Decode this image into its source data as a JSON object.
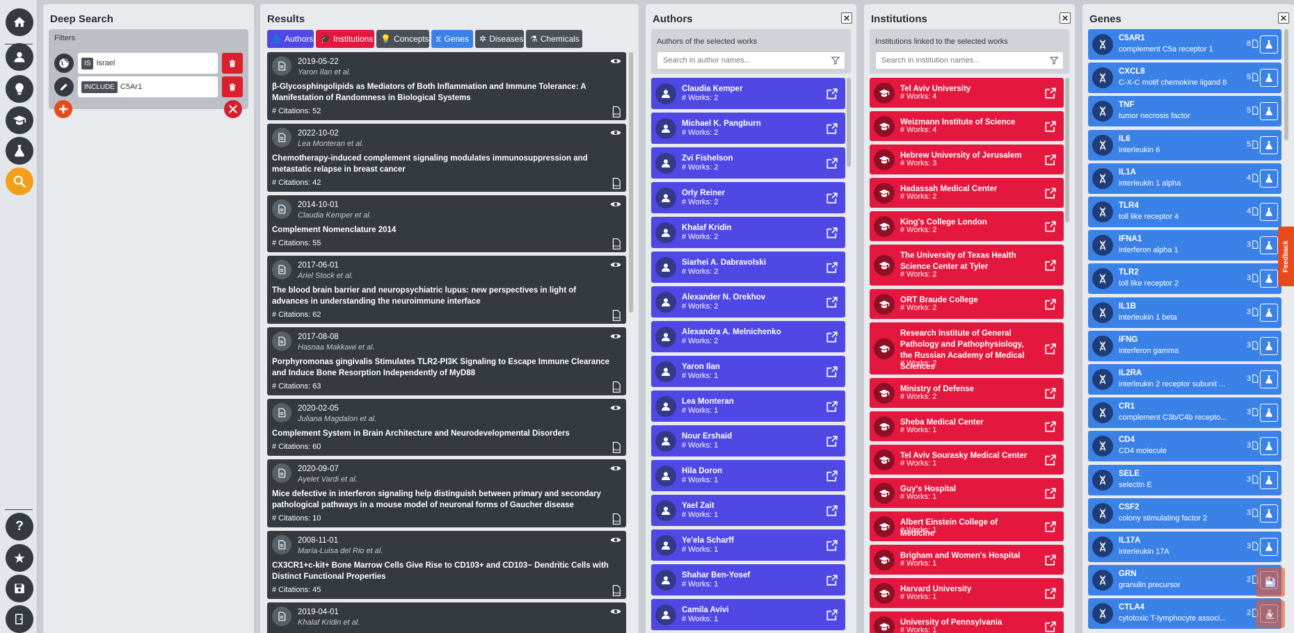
{
  "nav": {
    "items": [
      "home-icon",
      "user-icon",
      "lightbulb-icon",
      "graduation-cap-icon",
      "flask-icon",
      "search-icon"
    ],
    "bottom": [
      "help-icon",
      "star-icon",
      "save-icon",
      "logout-icon"
    ],
    "active": "search-icon"
  },
  "deep_search": {
    "title": "Deep Search",
    "filters_label": "Filters",
    "filters": [
      {
        "icon": "globe-icon",
        "operator": "IS",
        "value": "Israel"
      },
      {
        "icon": "pencil-icon",
        "operator": "INCLUDE",
        "value": "C5Ar1"
      }
    ]
  },
  "results": {
    "title": "Results",
    "tabs": [
      {
        "label": "Authors",
        "color": "#5048e5"
      },
      {
        "label": "Institutions",
        "color": "#e4183e"
      },
      {
        "label": "Concepts",
        "color": "#495057"
      },
      {
        "label": "Genes",
        "color": "#3b82e8"
      },
      {
        "label": "Diseases",
        "color": "#495057"
      },
      {
        "label": "Chemicals",
        "color": "#495057"
      }
    ],
    "papers": [
      {
        "date": "2019-05-22",
        "authors": "Yaron Ilan et al.",
        "title": "β-Glycosphingolipids as Mediators of Both Inflammation and Immune Tolerance: A Manifestation of Randomness in Biological Systems",
        "citations": "# Citations: 52"
      },
      {
        "date": "2022-10-02",
        "authors": "Lea Monteran et al.",
        "title": "Chemotherapy-induced complement signaling modulates immunosuppression and metastatic relapse in breast cancer",
        "citations": "# Citations: 42"
      },
      {
        "date": "2014-10-01",
        "authors": "Claudia Kemper et al.",
        "title": "Complement Nomenclature 2014",
        "citations": "# Citations: 55"
      },
      {
        "date": "2017-06-01",
        "authors": "Ariel Stock et al.",
        "title": "The blood brain barrier and neuropsychiatric lupus: new perspectives in light of advances in understanding the neuroimmune interface",
        "citations": "# Citations: 62"
      },
      {
        "date": "2017-08-08",
        "authors": "Hasnaa Makkawi et al.",
        "title": "Porphyromonas gingivalis Stimulates TLR2-PI3K Signaling to Escape Immune Clearance and Induce Bone Resorption Independently of MyD88",
        "citations": "# Citations: 63"
      },
      {
        "date": "2020-02-05",
        "authors": "Juliana Magdalon et al.",
        "title": "Complement System in Brain Architecture and Neurodevelopmental Disorders",
        "citations": "# Citations: 60"
      },
      {
        "date": "2020-09-07",
        "authors": "Ayelet Vardi et al.",
        "title": "Mice defective in interferon signaling help distinguish between primary and secondary pathological pathways in a mouse model of neuronal forms of Gaucher disease",
        "citations": "# Citations: 10"
      },
      {
        "date": "2008-11-01",
        "authors": "María-Luisa del Rio et al.",
        "title": "CX3CR1+c-kit+ Bone Marrow Cells Give Rise to CD103+ and CD103− Dendritic Cells with Distinct Functional Properties",
        "citations": "# Citations: 45"
      },
      {
        "date": "2019-04-01",
        "authors": "Khalaf Kridin et al.",
        "title": "",
        "citations": ""
      }
    ]
  },
  "authors": {
    "title": "Authors",
    "subtitle": "Authors of the selected works",
    "search_placeholder": "Search in author names...",
    "items": [
      {
        "name": "Claudia Kemper",
        "works": "# Works: 2"
      },
      {
        "name": "Michael K. Pangburn",
        "works": "# Works: 2"
      },
      {
        "name": "Zvi Fishelson",
        "works": "# Works: 2"
      },
      {
        "name": "Orly Reiner",
        "works": "# Works: 2"
      },
      {
        "name": "Khalaf Kridin",
        "works": "# Works: 2"
      },
      {
        "name": "Siarhei A. Dabravolski",
        "works": "# Works: 2"
      },
      {
        "name": "Alexander N. Orekhov",
        "works": "# Works: 2"
      },
      {
        "name": "Alexandra A. Melnichenko",
        "works": "# Works: 2"
      },
      {
        "name": "Yaron Ilan",
        "works": "# Works: 1"
      },
      {
        "name": "Lea Monteran",
        "works": "# Works: 1"
      },
      {
        "name": "Nour Ershaid",
        "works": "# Works: 1"
      },
      {
        "name": "Hila Doron",
        "works": "# Works: 1"
      },
      {
        "name": "Yael Zait",
        "works": "# Works: 1"
      },
      {
        "name": "Ye'ela Scharff",
        "works": "# Works: 1"
      },
      {
        "name": "Shahar Ben-Yosef",
        "works": "# Works: 1"
      },
      {
        "name": "Camila Avivi",
        "works": "# Works: 1"
      }
    ]
  },
  "institutions": {
    "title": "Institutions",
    "subtitle": "Institutions linked to the selected works",
    "search_placeholder": "Search in institution names...",
    "items": [
      {
        "name": "Tel Aviv University",
        "works": "# Works: 4"
      },
      {
        "name": "Weizmann Institute of Science",
        "works": "# Works: 4"
      },
      {
        "name": "Hebrew University of Jerusalem",
        "works": "# Works: 3"
      },
      {
        "name": "Hadassah Medical Center",
        "works": "# Works: 2"
      },
      {
        "name": "King's College London",
        "works": "# Works: 2"
      },
      {
        "name": "The University of Texas Health Science Center at Tyler",
        "works": "# Works: 2"
      },
      {
        "name": "ORT Braude College",
        "works": "# Works: 2"
      },
      {
        "name": "Research Institute of General Pathology and Pathophysiology, the Russian Academy of Medical Sciences",
        "works": "# Works: 2"
      },
      {
        "name": "Ministry of Defense",
        "works": "# Works: 2"
      },
      {
        "name": "Sheba Medical Center",
        "works": "# Works: 1"
      },
      {
        "name": "Tel Aviv Sourasky Medical Center",
        "works": "# Works: 1"
      },
      {
        "name": "Guy's Hospital",
        "works": "# Works: 1"
      },
      {
        "name": "Albert Einstein College of Medicine",
        "works": "# Works: 1"
      },
      {
        "name": "Brigham and Women's Hospital",
        "works": "# Works: 1"
      },
      {
        "name": "Harvard University",
        "works": "# Works: 1"
      },
      {
        "name": "University of Pennsylvania",
        "works": "# Works: 1"
      }
    ]
  },
  "genes": {
    "title": "Genes",
    "items": [
      {
        "symbol": "C5AR1",
        "name": "complement C5a receptor 1",
        "count": "8"
      },
      {
        "symbol": "CXCL8",
        "name": "C-X-C motif chemokine ligand 8",
        "count": "5"
      },
      {
        "symbol": "TNF",
        "name": "tumor necrosis factor",
        "count": "5"
      },
      {
        "symbol": "IL6",
        "name": "interleukin 6",
        "count": "5"
      },
      {
        "symbol": "IL1A",
        "name": "interleukin 1 alpha",
        "count": "4"
      },
      {
        "symbol": "TLR4",
        "name": "toll like receptor 4",
        "count": "4"
      },
      {
        "symbol": "IFNA1",
        "name": "interferon alpha 1",
        "count": "3"
      },
      {
        "symbol": "TLR2",
        "name": "toll like receptor 2",
        "count": "3"
      },
      {
        "symbol": "IL1B",
        "name": "interleukin 1 beta",
        "count": "3"
      },
      {
        "symbol": "IFNG",
        "name": "interferon gamma",
        "count": "3"
      },
      {
        "symbol": "IL2RA",
        "name": "interleukin 2 receptor subunit ...",
        "count": "3"
      },
      {
        "symbol": "CR1",
        "name": "complement C3b/C4b recepto...",
        "count": "3"
      },
      {
        "symbol": "CD4",
        "name": "CD4 molecule",
        "count": "3"
      },
      {
        "symbol": "SELE",
        "name": "selectin E",
        "count": "3"
      },
      {
        "symbol": "CSF2",
        "name": "colony stimulating factor 2",
        "count": "3"
      },
      {
        "symbol": "IL17A",
        "name": "interleukin 17A",
        "count": "3"
      },
      {
        "symbol": "GRN",
        "name": "granulin precursor",
        "count": "2"
      },
      {
        "symbol": "CTLA4",
        "name": "cytotoxic T-lymphocyte associ...",
        "count": "2"
      }
    ]
  },
  "feedback_label": "Feedback"
}
